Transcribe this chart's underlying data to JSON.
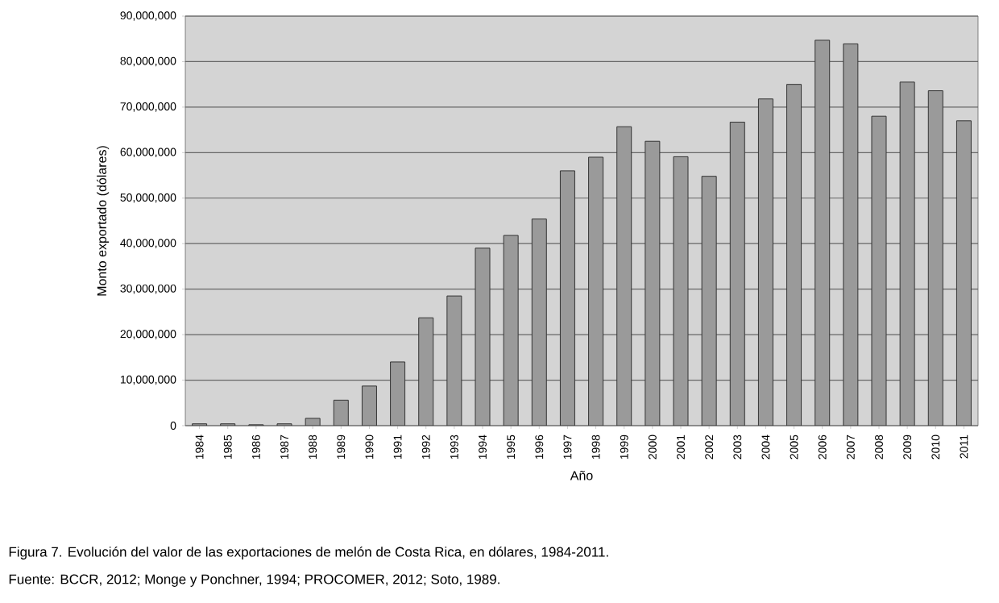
{
  "chart_data": {
    "type": "bar",
    "xlabel": "Año",
    "ylabel": "Monto exportado (dólares)",
    "categories": [
      "1984",
      "1985",
      "1986",
      "1987",
      "1988",
      "1989",
      "1990",
      "1991",
      "1992",
      "1993",
      "1994",
      "1995",
      "1996",
      "1997",
      "1998",
      "1999",
      "2000",
      "2001",
      "2002",
      "2003",
      "2004",
      "2005",
      "2006",
      "2007",
      "2008",
      "2009",
      "2010",
      "2011"
    ],
    "values": [
      400000,
      400000,
      200000,
      400000,
      1600000,
      5600000,
      8700000,
      14000000,
      23700000,
      28500000,
      39000000,
      41800000,
      45400000,
      56000000,
      59000000,
      65700000,
      62500000,
      59100000,
      54800000,
      66700000,
      71800000,
      75000000,
      84700000,
      83900000,
      68000000,
      75500000,
      73600000,
      67000000
    ],
    "color": "#9a9a9a",
    "ylim": [
      0,
      90000000
    ],
    "yticks": [
      0,
      {
        "value": 10000000,
        "label": "10,000,000"
      },
      {
        "value": 20000000,
        "label": "20,000,000"
      },
      {
        "value": 30000000,
        "label": "30,000,000"
      },
      {
        "value": 40000000,
        "label": "40,000,000"
      },
      {
        "value": 50000000,
        "label": "50,000,000"
      },
      {
        "value": 60000000,
        "label": "60,000,000"
      },
      {
        "value": 70000000,
        "label": "70,000,000"
      },
      {
        "value": 80000000,
        "label": "80,000,000"
      },
      {
        "value": 90000000,
        "label": "90,000,000"
      }
    ],
    "grid": "y",
    "annotations": [
      "Figura 7. Evolución del valor de las exportaciones de melón de Costa Rica, en dólares, 1984-2011.",
      "Fuente: BCCR, 2012; Monge y Ponchner, 1994; PROCOMER, 2012; Soto, 1989."
    ]
  }
}
